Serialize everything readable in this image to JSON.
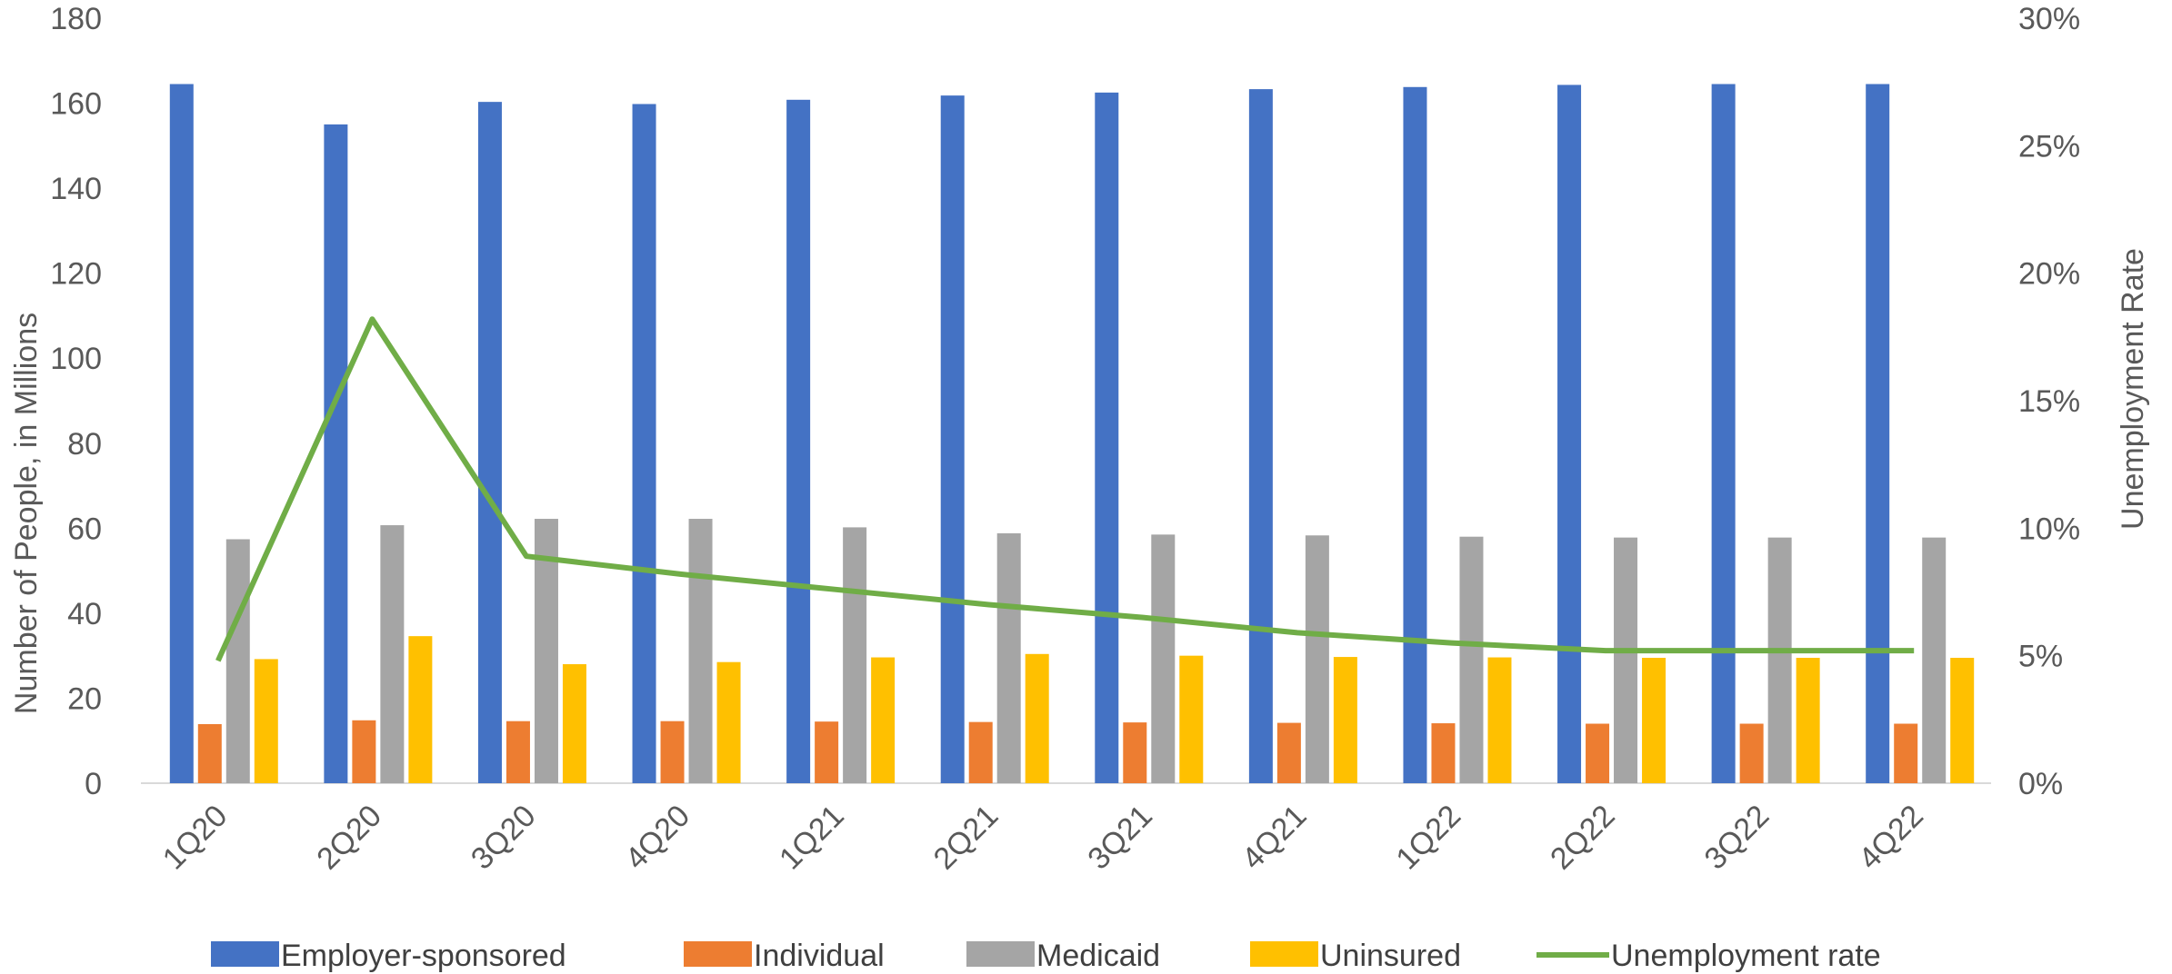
{
  "chart_data": {
    "type": "bar",
    "categories": [
      "1Q20",
      "2Q20",
      "3Q20",
      "4Q20",
      "1Q21",
      "2Q21",
      "3Q21",
      "4Q21",
      "1Q22",
      "2Q22",
      "3Q22",
      "4Q22"
    ],
    "series": [
      {
        "name": "Employer-sponsored",
        "type": "bar",
        "axis": "left",
        "color": "#4472C4",
        "values": [
          164.5,
          155,
          160.3,
          159.8,
          160.8,
          161.8,
          162.5,
          163.3,
          163.8,
          164.3,
          164.5,
          164.5
        ]
      },
      {
        "name": "Individual",
        "type": "bar",
        "axis": "left",
        "color": "#ED7D31",
        "values": [
          13.9,
          14.8,
          14.6,
          14.6,
          14.5,
          14.4,
          14.3,
          14.2,
          14.1,
          14.0,
          14.0,
          14.0
        ]
      },
      {
        "name": "Medicaid",
        "type": "bar",
        "axis": "left",
        "color": "#A5A5A5",
        "values": [
          57.4,
          60.7,
          62.2,
          62.2,
          60.2,
          58.8,
          58.5,
          58.3,
          58.0,
          57.8,
          57.8,
          57.8
        ]
      },
      {
        "name": "Uninsured",
        "type": "bar",
        "axis": "left",
        "color": "#FFC000",
        "values": [
          29.2,
          34.6,
          28.0,
          28.5,
          29.6,
          30.4,
          30.0,
          29.7,
          29.6,
          29.5,
          29.5,
          29.5
        ]
      },
      {
        "name": "Unemployment rate",
        "type": "line",
        "axis": "right",
        "color": "#70AD47",
        "values": [
          4.8,
          18.2,
          8.9,
          8.2,
          7.6,
          7.0,
          6.5,
          5.9,
          5.5,
          5.2,
          5.2,
          5.2
        ]
      }
    ],
    "ylabel": "Number of People, in Millions",
    "y2label": "Unemployment Rate",
    "ylim": [
      0,
      180
    ],
    "yticks": [
      "0",
      "20",
      "40",
      "60",
      "80",
      "100",
      "120",
      "140",
      "160",
      "180"
    ],
    "y2lim": [
      0,
      30
    ],
    "y2ticks": [
      "0%",
      "5%",
      "10%",
      "15%",
      "20%",
      "25%",
      "30%"
    ],
    "grid": false,
    "legend_position": "bottom"
  }
}
